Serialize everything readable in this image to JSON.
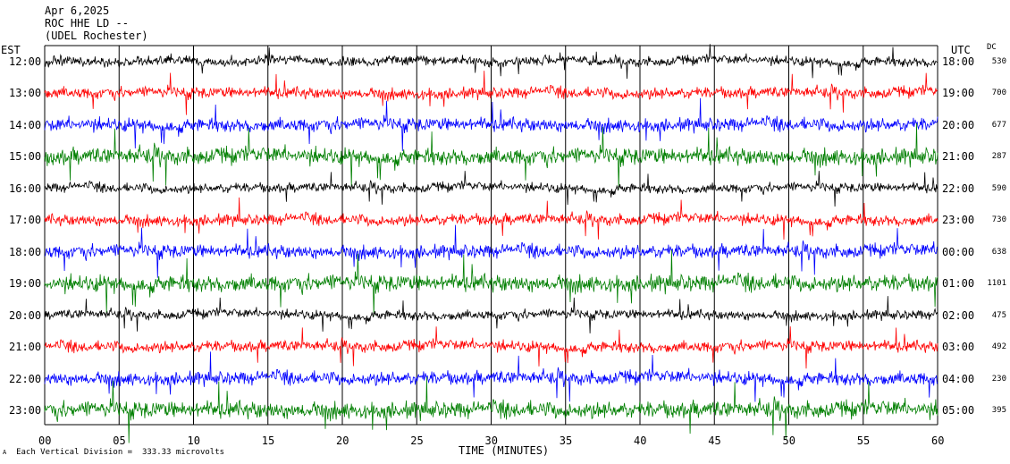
{
  "header": {
    "date": "Apr 6,2025",
    "station": "ROC HHE LD --",
    "location": "(UDEL Rochester)"
  },
  "left_axis_title": "EST",
  "right_axis_title": "UTC",
  "dc_title": "DC",
  "xlabel": "TIME (MINUTES)",
  "footer": "Each Vertical Division =  333.33 microvolts",
  "footer_mark": "A",
  "colors": {
    "black": "#000000",
    "red": "#ff0000",
    "blue": "#0000ff",
    "green": "#007f00"
  },
  "chart_data": {
    "type": "line",
    "title": "ROC HHE LD --",
    "x_ticks": [
      "00",
      "05",
      "10",
      "15",
      "20",
      "25",
      "30",
      "35",
      "40",
      "45",
      "50",
      "55",
      "60"
    ],
    "xlim": [
      0,
      60
    ],
    "rows": [
      {
        "est": "12:00",
        "utc": "18:00",
        "dc": "530",
        "color": "black"
      },
      {
        "est": "13:00",
        "utc": "19:00",
        "dc": "700",
        "color": "red"
      },
      {
        "est": "14:00",
        "utc": "20:00",
        "dc": "677",
        "color": "blue"
      },
      {
        "est": "15:00",
        "utc": "21:00",
        "dc": "287",
        "color": "green"
      },
      {
        "est": "16:00",
        "utc": "22:00",
        "dc": "590",
        "color": "black"
      },
      {
        "est": "17:00",
        "utc": "23:00",
        "dc": "730",
        "color": "red"
      },
      {
        "est": "18:00",
        "utc": "00:00",
        "dc": "638",
        "color": "blue"
      },
      {
        "est": "19:00",
        "utc": "01:00",
        "dc": "1101",
        "color": "green"
      },
      {
        "est": "20:00",
        "utc": "02:00",
        "dc": "475",
        "color": "black"
      },
      {
        "est": "21:00",
        "utc": "03:00",
        "dc": "492",
        "color": "red"
      },
      {
        "est": "22:00",
        "utc": "04:00",
        "dc": "230",
        "color": "blue"
      },
      {
        "est": "23:00",
        "utc": "05:00",
        "dc": "395",
        "color": "green"
      }
    ]
  }
}
